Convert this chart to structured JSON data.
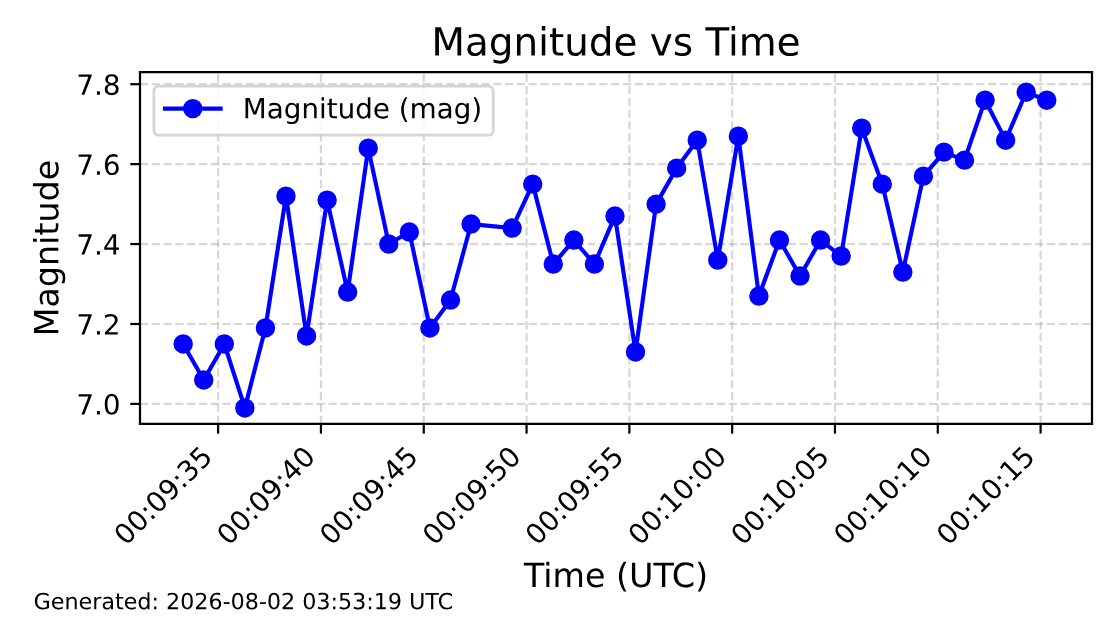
{
  "chart_data": {
    "type": "line",
    "title": "Magnitude vs Time",
    "xlabel": "Time (UTC)",
    "ylabel": "Magnitude",
    "x": [
      "2026-08-02T00:09:33.3",
      "2026-08-02T00:09:34.3",
      "2026-08-02T00:09:35.3",
      "2026-08-02T00:09:36.3",
      "2026-08-02T00:09:37.3",
      "2026-08-02T00:09:38.3",
      "2026-08-02T00:09:39.3",
      "2026-08-02T00:09:40.3",
      "2026-08-02T00:09:41.3",
      "2026-08-02T00:09:42.3",
      "2026-08-02T00:09:43.3",
      "2026-08-02T00:09:44.3",
      "2026-08-02T00:09:45.3",
      "2026-08-02T00:09:46.3",
      "2026-08-02T00:09:47.3",
      "2026-08-02T00:09:49.3",
      "2026-08-02T00:09:50.3",
      "2026-08-02T00:09:51.3",
      "2026-08-02T00:09:52.3",
      "2026-08-02T00:09:53.3",
      "2026-08-02T00:09:54.3",
      "2026-08-02T00:09:55.3",
      "2026-08-02T00:09:56.3",
      "2026-08-02T00:09:57.3",
      "2026-08-02T00:09:58.3",
      "2026-08-02T00:09:59.3",
      "2026-08-02T00:10:00.3",
      "2026-08-02T00:10:01.3",
      "2026-08-02T00:10:02.3",
      "2026-08-02T00:10:03.3",
      "2026-08-02T00:10:04.3",
      "2026-08-02T00:10:05.3",
      "2026-08-02T00:10:06.3",
      "2026-08-02T00:10:07.3",
      "2026-08-02T00:10:08.3",
      "2026-08-02T00:10:09.3",
      "2026-08-02T00:10:10.3",
      "2026-08-02T00:10:11.3",
      "2026-08-02T00:10:12.3",
      "2026-08-02T00:10:13.3",
      "2026-08-02T00:10:14.3",
      "2026-08-02T00:10:15.3"
    ],
    "series": [
      {
        "name": "Magnitude (mag)",
        "color": "#0000ff",
        "values": [
          7.15,
          7.06,
          7.15,
          6.99,
          7.19,
          7.52,
          7.17,
          7.51,
          7.28,
          7.64,
          7.4,
          7.43,
          7.19,
          7.26,
          7.45,
          7.44,
          7.55,
          7.35,
          7.41,
          7.35,
          7.47,
          7.13,
          7.5,
          7.59,
          7.66,
          7.36,
          7.67,
          7.27,
          7.41,
          7.32,
          7.41,
          7.37,
          7.69,
          7.55,
          7.33,
          7.57,
          7.63,
          7.61,
          7.76,
          7.66,
          7.78,
          7.76
        ]
      }
    ],
    "xlim": [
      "2026-08-02T00:09:31.2",
      "2026-08-02T00:10:17.5"
    ],
    "xticks": [
      {
        "value": "2026-08-02T00:09:35",
        "label": "00:09:35"
      },
      {
        "value": "2026-08-02T00:09:40",
        "label": "00:09:40"
      },
      {
        "value": "2026-08-02T00:09:45",
        "label": "00:09:45"
      },
      {
        "value": "2026-08-02T00:09:50",
        "label": "00:09:50"
      },
      {
        "value": "2026-08-02T00:09:55",
        "label": "00:09:55"
      },
      {
        "value": "2026-08-02T00:10:00",
        "label": "00:10:00"
      },
      {
        "value": "2026-08-02T00:10:05",
        "label": "00:10:05"
      },
      {
        "value": "2026-08-02T00:10:10",
        "label": "00:10:10"
      },
      {
        "value": "2026-08-02T00:10:15",
        "label": "00:10:15"
      }
    ],
    "ylim": [
      6.95,
      7.83
    ],
    "yticks": [
      {
        "value": 7.0,
        "label": "7.0"
      },
      {
        "value": 7.2,
        "label": "7.2"
      },
      {
        "value": 7.4,
        "label": "7.4"
      },
      {
        "value": 7.6,
        "label": "7.6"
      },
      {
        "value": 7.8,
        "label": "7.8"
      }
    ],
    "grid": true,
    "legend": "top left",
    "marker": "circle",
    "line_style": "solid",
    "annotations": [
      "Generated: 2026-08-02 03:53:19 UTC"
    ]
  }
}
